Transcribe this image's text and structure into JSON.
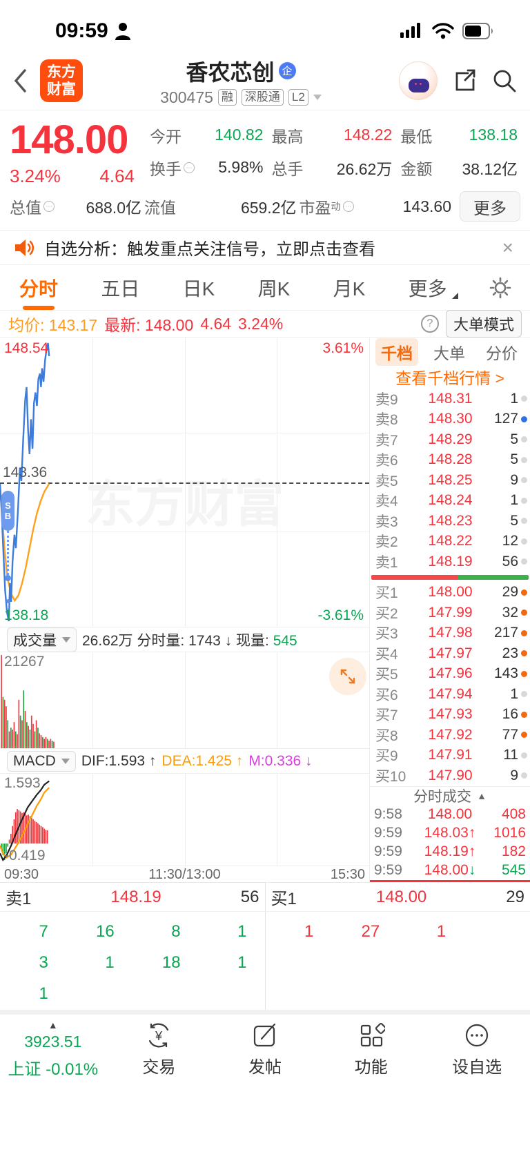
{
  "status_bar": {
    "time": "09:59"
  },
  "header": {
    "logo_line1": "东方",
    "logo_line2": "财富",
    "title": "香农芯创",
    "title_badge": "企",
    "code": "300475",
    "tags": [
      "融",
      "深股通",
      "L2"
    ]
  },
  "quote": {
    "price": "148.00",
    "change_pct": "3.24%",
    "change": "4.64",
    "stats": [
      {
        "label": "今开",
        "value": "140.82",
        "color": "green"
      },
      {
        "label": "最高",
        "value": "148.22",
        "color": "red"
      },
      {
        "label": "最低",
        "value": "138.18",
        "color": "green"
      },
      {
        "label": "换手",
        "value": "5.98%",
        "color": "dark",
        "hint": true
      },
      {
        "label": "总手",
        "value": "26.62万",
        "color": "dark"
      },
      {
        "label": "金额",
        "value": "38.12亿",
        "color": "dark"
      },
      {
        "label": "总值",
        "value": "688.0亿",
        "color": "dark",
        "hint": true
      },
      {
        "label": "流值",
        "value": "659.2亿",
        "color": "dark"
      },
      {
        "label": "市盈",
        "sup": "动",
        "value": "143.60",
        "color": "dark",
        "hint": true
      }
    ],
    "more_label": "更多"
  },
  "notice": {
    "text": "自选分析：触发重点关注信号，立即点击查看",
    "close": "×"
  },
  "tabs": {
    "items": [
      "分时",
      "五日",
      "日K",
      "周K",
      "月K",
      "更多"
    ]
  },
  "avg_bar": {
    "avg_label": "均价:",
    "avg": "143.17",
    "last_label": "最新:",
    "last": "148.00",
    "chg": "4.64",
    "chg_pct": "3.24%",
    "mode_btn": "大单模式"
  },
  "chart_labels": {
    "high": "148.54",
    "high_pct": "3.61%",
    "mid": "143.36",
    "low": "138.18",
    "low_pct": "-3.61%",
    "watermark": "东方财富",
    "signal_top": "S",
    "signal_bottom": "B"
  },
  "volume_bar": {
    "selector": "成交量",
    "total": "26.62万",
    "minute_label": "分时量:",
    "minute": "1743",
    "arrow": "↓",
    "now_label": "现量:",
    "now": "545",
    "scale_max": "21267"
  },
  "macd_bar": {
    "selector": "MACD",
    "dif": "DIF:1.593 ↑",
    "dea": "DEA:1.425 ↑",
    "m": "M:0.336 ↓",
    "max": "1.593",
    "min": "-0.419"
  },
  "time_axis": {
    "open": "09:30",
    "mid": "11:30/13:00",
    "close": "15:30"
  },
  "panel": {
    "tabs": [
      "千档",
      "大单",
      "分价"
    ],
    "link": "查看千档行情 >",
    "sells": [
      {
        "label": "卖9",
        "price": "148.31",
        "vol": "1",
        "dot": "grey"
      },
      {
        "label": "卖8",
        "price": "148.30",
        "vol": "127",
        "dot": "blueD"
      },
      {
        "label": "卖7",
        "price": "148.29",
        "vol": "5",
        "dot": "grey"
      },
      {
        "label": "卖6",
        "price": "148.28",
        "vol": "5",
        "dot": "grey"
      },
      {
        "label": "卖5",
        "price": "148.25",
        "vol": "9",
        "dot": "grey"
      },
      {
        "label": "卖4",
        "price": "148.24",
        "vol": "1",
        "dot": "grey"
      },
      {
        "label": "卖3",
        "price": "148.23",
        "vol": "5",
        "dot": "grey"
      },
      {
        "label": "卖2",
        "price": "148.22",
        "vol": "12",
        "dot": "grey"
      },
      {
        "label": "卖1",
        "price": "148.19",
        "vol": "56",
        "dot": "grey"
      }
    ],
    "ratio": {
      "red": 55,
      "green": 45
    },
    "buys": [
      {
        "label": "买1",
        "price": "148.00",
        "vol": "29",
        "dot": "orangeD"
      },
      {
        "label": "买2",
        "price": "147.99",
        "vol": "32",
        "dot": "orangeD"
      },
      {
        "label": "买3",
        "price": "147.98",
        "vol": "217",
        "dot": "orangeD"
      },
      {
        "label": "买4",
        "price": "147.97",
        "vol": "23",
        "dot": "orangeD"
      },
      {
        "label": "买5",
        "price": "147.96",
        "vol": "143",
        "dot": "orangeD"
      },
      {
        "label": "买6",
        "price": "147.94",
        "vol": "1",
        "dot": "grey"
      },
      {
        "label": "买7",
        "price": "147.93",
        "vol": "16",
        "dot": "orangeD"
      },
      {
        "label": "买8",
        "price": "147.92",
        "vol": "77",
        "dot": "orangeD"
      },
      {
        "label": "买9",
        "price": "147.91",
        "vol": "11",
        "dot": "grey"
      },
      {
        "label": "买10",
        "price": "147.90",
        "vol": "9",
        "dot": "grey"
      }
    ],
    "ticks_title": "分时成交",
    "ticks": [
      {
        "time": "9:58",
        "price": "148.00",
        "arrow": "",
        "vol": "408",
        "price_color": "red",
        "vol_color": "red"
      },
      {
        "time": "9:59",
        "price": "148.03",
        "arrow": "↑",
        "vol": "1016",
        "price_color": "red",
        "vol_color": "red"
      },
      {
        "time": "9:59",
        "price": "148.19",
        "arrow": "↑",
        "vol": "182",
        "price_color": "red",
        "vol_color": "red"
      },
      {
        "time": "9:59",
        "price": "148.00",
        "arrow": "↓",
        "vol": "545",
        "price_color": "red",
        "vol_color": "green"
      }
    ]
  },
  "bottom_quote": {
    "sell_label": "卖1",
    "sell_price": "148.19",
    "sell_vol": "56",
    "buy_label": "买1",
    "buy_price": "148.00",
    "buy_vol": "29"
  },
  "queue_grid": {
    "left": [
      [
        "7",
        "16",
        "8",
        "1"
      ],
      [
        "3",
        "1",
        "18",
        "1"
      ],
      [
        "1",
        "",
        "",
        ""
      ]
    ],
    "right": [
      [
        "1",
        "27",
        "1",
        ""
      ],
      [
        "",
        "",
        "",
        ""
      ],
      [
        "",
        "",
        "",
        ""
      ]
    ]
  },
  "nav": {
    "index_value": "3923.51",
    "index_label": "上证 -0.01%",
    "items": [
      "交易",
      "发帖",
      "功能",
      "设自选"
    ]
  },
  "chart_data": {
    "type": "line",
    "title": "香农芯创 300475 分时图",
    "price_range": [
      138.18,
      148.54
    ],
    "prev_close": 143.36,
    "pct_range": [
      -3.61,
      3.61
    ],
    "x_axis": [
      "09:30",
      "11:30/13:00",
      "15:30"
    ],
    "price_series": [
      [
        0,
        143.3
      ],
      [
        0.004,
        142.4
      ],
      [
        0.009,
        140.8
      ],
      [
        0.014,
        139.3
      ],
      [
        0.019,
        138.5
      ],
      [
        0.024,
        138.18
      ],
      [
        0.027,
        139.6
      ],
      [
        0.03,
        138.9
      ],
      [
        0.034,
        140.4
      ],
      [
        0.039,
        141.4
      ],
      [
        0.043,
        140.9
      ],
      [
        0.049,
        142.4
      ],
      [
        0.054,
        143.9
      ],
      [
        0.058,
        143.4
      ],
      [
        0.063,
        145.0
      ],
      [
        0.068,
        146.4
      ],
      [
        0.072,
        146.9
      ],
      [
        0.076,
        145.3
      ],
      [
        0.08,
        144.4
      ],
      [
        0.084,
        145.7
      ],
      [
        0.088,
        144.6
      ],
      [
        0.092,
        146.3
      ],
      [
        0.096,
        146.7
      ],
      [
        0.1,
        146.2
      ],
      [
        0.104,
        147.2
      ],
      [
        0.108,
        147.4
      ],
      [
        0.111,
        146.9
      ],
      [
        0.114,
        147.6
      ],
      [
        0.118,
        147.1
      ],
      [
        0.122,
        147.9
      ],
      [
        0.126,
        148.3
      ],
      [
        0.13,
        148.54
      ],
      [
        0.133,
        148.05
      ]
    ],
    "avg_series": [
      [
        0,
        143.2
      ],
      [
        0.006,
        142.1
      ],
      [
        0.012,
        140.9
      ],
      [
        0.02,
        139.8
      ],
      [
        0.03,
        139.2
      ],
      [
        0.04,
        138.95
      ],
      [
        0.05,
        139.15
      ],
      [
        0.06,
        139.6
      ],
      [
        0.07,
        140.2
      ],
      [
        0.08,
        140.9
      ],
      [
        0.09,
        141.6
      ],
      [
        0.1,
        142.2
      ],
      [
        0.11,
        142.65
      ],
      [
        0.12,
        143.0
      ],
      [
        0.133,
        143.3
      ]
    ],
    "volume_max": 21267,
    "volume_bars": [
      [
        1.0,
        "r"
      ],
      [
        0.55,
        "g"
      ],
      [
        0.52,
        "r"
      ],
      [
        0.45,
        "r"
      ],
      [
        0.3,
        "g"
      ],
      [
        0.18,
        "r"
      ],
      [
        0.22,
        "g"
      ],
      [
        0.2,
        "r"
      ],
      [
        0.28,
        "r"
      ],
      [
        0.18,
        "g"
      ],
      [
        0.15,
        "r"
      ],
      [
        0.52,
        "r"
      ],
      [
        0.35,
        "g"
      ],
      [
        0.3,
        "r"
      ],
      [
        0.62,
        "g"
      ],
      [
        0.4,
        "r"
      ],
      [
        0.28,
        "g"
      ],
      [
        0.24,
        "r"
      ],
      [
        0.2,
        "g"
      ],
      [
        0.35,
        "r"
      ],
      [
        0.26,
        "r"
      ],
      [
        0.18,
        "g"
      ],
      [
        0.3,
        "r"
      ],
      [
        0.22,
        "g"
      ],
      [
        0.16,
        "r"
      ],
      [
        0.14,
        "r"
      ],
      [
        0.12,
        "g"
      ],
      [
        0.1,
        "r"
      ],
      [
        0.12,
        "r"
      ],
      [
        0.1,
        "g"
      ],
      [
        0.08,
        "r"
      ],
      [
        0.1,
        "r"
      ],
      [
        0.08,
        "g"
      ],
      [
        0.07,
        "r"
      ]
    ],
    "macd": {
      "dif": 1.593,
      "dea": 1.425,
      "m": 0.336,
      "range": [
        -0.419,
        1.593
      ],
      "dif_series": [
        [
          0,
          -0.25
        ],
        [
          0.008,
          -0.419
        ],
        [
          0.018,
          -0.3
        ],
        [
          0.03,
          -0.05
        ],
        [
          0.045,
          0.3
        ],
        [
          0.06,
          0.62
        ],
        [
          0.075,
          0.92
        ],
        [
          0.09,
          1.12
        ],
        [
          0.1,
          1.25
        ],
        [
          0.11,
          1.36
        ],
        [
          0.12,
          1.5
        ],
        [
          0.133,
          1.593
        ]
      ],
      "dea_series": [
        [
          0,
          -0.05
        ],
        [
          0.008,
          -0.25
        ],
        [
          0.018,
          -0.36
        ],
        [
          0.03,
          -0.28
        ],
        [
          0.045,
          -0.05
        ],
        [
          0.06,
          0.2
        ],
        [
          0.075,
          0.5
        ],
        [
          0.09,
          0.78
        ],
        [
          0.1,
          0.97
        ],
        [
          0.11,
          1.12
        ],
        [
          0.12,
          1.3
        ],
        [
          0.133,
          1.425
        ]
      ],
      "hist": [
        [
          -0.12,
          "g"
        ],
        [
          -0.3,
          "g"
        ],
        [
          -0.42,
          "g"
        ],
        [
          -0.25,
          "g"
        ],
        [
          -0.08,
          "g"
        ],
        [
          0.1,
          "r"
        ],
        [
          0.25,
          "r"
        ],
        [
          0.45,
          "r"
        ],
        [
          0.62,
          "r"
        ],
        [
          0.8,
          "r"
        ],
        [
          0.88,
          "r"
        ],
        [
          0.85,
          "r"
        ],
        [
          0.82,
          "r"
        ],
        [
          0.78,
          "r"
        ],
        [
          0.8,
          "r"
        ],
        [
          0.76,
          "r"
        ],
        [
          0.72,
          "r"
        ],
        [
          0.74,
          "r"
        ],
        [
          0.7,
          "r"
        ],
        [
          0.66,
          "r"
        ],
        [
          0.62,
          "r"
        ],
        [
          0.58,
          "r"
        ],
        [
          0.55,
          "r"
        ],
        [
          0.52,
          "r"
        ],
        [
          0.48,
          "r"
        ],
        [
          0.45,
          "r"
        ],
        [
          0.42,
          "r"
        ],
        [
          0.38,
          "r"
        ],
        [
          0.35,
          "r"
        ],
        [
          0.34,
          "r"
        ]
      ]
    }
  }
}
